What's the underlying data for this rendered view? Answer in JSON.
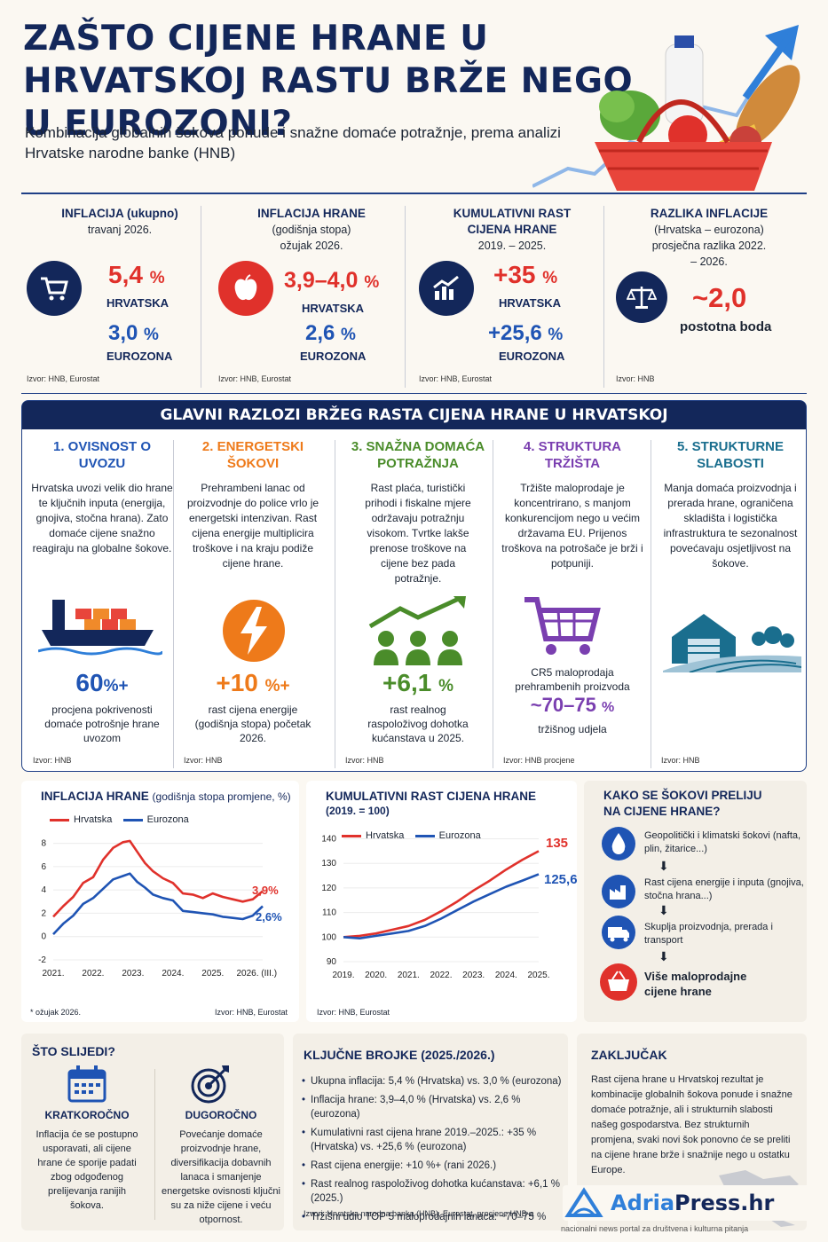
{
  "title": "ZAŠTO CIJENE HRANE U HRVATSKOJ RASTU BRŽE NEGO U EUROZONI?",
  "subtitle": "Kombinacija globalnih šokova ponude i snažne domaće potražnje, prema analizi Hrvatske narodne banke (HNB)",
  "kpis": [
    {
      "heading": "INFLACIJA (ukupno)",
      "sub": "travanj 2026.",
      "v1": "5,4",
      "u1": "%",
      "l1": "HRVATSKA",
      "v2": "3,0",
      "u2": "%",
      "l2": "EUROZONA",
      "src": "Izvor: HNB, Eurostat",
      "icon": "cart-icon"
    },
    {
      "heading": "INFLACIJA HRANE",
      "sub": "(godišnja stopa) ožujak 2026.",
      "v1": "3,9–4,0",
      "u1": "%",
      "l1": "HRVATSKA",
      "v2": "2,6",
      "u2": "%",
      "l2": "EUROZONA",
      "src": "Izvor: HNB, Eurostat",
      "icon": "apple-icon"
    },
    {
      "heading": "KUMULATIVNI RAST CIJENA HRANE",
      "sub": "2019. – 2025.",
      "v1": "+35",
      "u1": "%",
      "l1": "HRVATSKA",
      "v2": "+25,6",
      "u2": "%",
      "l2": "EUROZONA",
      "src": "Izvor: HNB, Eurostat",
      "icon": "growth-chart-icon"
    },
    {
      "heading": "RAZLIKA INFLACIJE",
      "sub": "(Hrvatska – eurozona) prosječna razlika 2022. – 2026.",
      "v1": "~2,0",
      "l1": "postotna boda",
      "src": "Izvor: HNB",
      "icon": "scales-icon"
    }
  ],
  "reasons_title": "GLAVNI RAZLOZI BRŽEG RASTA CIJENA HRANE U HRVATSKOJ",
  "reasons": [
    {
      "title": "1. OVISNOST O UVOZU",
      "color": "#1f54b4",
      "desc": "Hrvatska uvozi velik dio hrane te ključnih inputa (energija, gnojiva, stočna hrana). Zato domaće cijene snažno reagiraju na globalne šokove.",
      "value": "60",
      "unit": "%+",
      "label": "procjena pokrivenosti domaće potrošnje hrane uvozom",
      "src": "Izvor: HNB",
      "icon": "cargo-ship-icon"
    },
    {
      "title": "2. ENERGETSKI ŠOKOVI",
      "color": "#ee7a1a",
      "desc": "Prehrambeni lanac od proizvodnje do police vrlo je energetski intenzivan. Rast cijena energije multiplicira troškove i na kraju podiže cijene hrane.",
      "value": "+10",
      "unit": "%+",
      "label": "rast cijena energije (godišnja stopa) početak 2026.",
      "src": "Izvor: HNB",
      "icon": "lightning-icon"
    },
    {
      "title": "3. SNAŽNA DOMAĆA POTRAŽNJA",
      "color": "#4a8c2a",
      "desc": "Rast plaća, turistički prihodi i fiskalne mjere održavaju potražnju visokom. Tvrtke lakše prenose troškove na cijene bez pada potražnje.",
      "value": "+6,1",
      "unit": "%",
      "label": "rast realnog raspoloživog dohotka kućanstava u 2025.",
      "src": "Izvor: HNB",
      "icon": "people-growth-icon"
    },
    {
      "title": "4. STRUKTURA TRŽIŠTA",
      "color": "#7a3fb0",
      "desc": "Tržište maloprodaje je koncentrirano, s manjom konkurencijom nego u većim državama EU. Prijenos troškova na potrošače je brži i potpuniji.",
      "pre": "CR5 maloprodaja prehrambenih proizvoda",
      "value": "~70–75",
      "unit": "%",
      "label": "tržišnog udjela",
      "src": "Izvor: HNB procjene",
      "icon": "shopping-cart-icon"
    },
    {
      "title": "5. STRUKTURNE SLABOSTI",
      "color": "#1a6e8e",
      "desc": "Manja domaća proizvodnja i prerada hrane, ograničena skladišta i logistička infrastruktura te sezonalnost povećavaju osjetljivost na šokove.",
      "src": "Izvor: HNB",
      "icon": "warehouse-icon"
    }
  ],
  "chart1": {
    "title": "INFLACIJA HRANE",
    "title_sub": "(godišnja stopa promjene, %)",
    "legend": [
      "Hrvatska",
      "Eurozona"
    ],
    "end_labels": [
      "3,9%",
      "2,6%"
    ],
    "note": "* ožujak 2026.",
    "src": "Izvor: HNB, Eurostat"
  },
  "chart2": {
    "title": "KUMULATIVNI RAST CIJENA HRANE",
    "title_sub": "(2019. = 100)",
    "legend": [
      "Hrvatska",
      "Eurozona"
    ],
    "end_labels": [
      "135",
      "125,6"
    ],
    "src": "Izvor: HNB, Eurostat"
  },
  "chart_data": [
    {
      "type": "line",
      "title": "INFLACIJA HRANE (godišnja stopa promjene, %)",
      "x_ticks": [
        "2021.",
        "2022.",
        "2023.",
        "2024.",
        "2025.",
        "2026. (III.)"
      ],
      "y_ticks": [
        -2,
        0,
        2,
        4,
        6,
        8
      ],
      "ylim": [
        -2,
        8.5
      ],
      "x": [
        2021.0,
        2021.25,
        2021.5,
        2021.75,
        2022.0,
        2022.25,
        2022.5,
        2022.75,
        2022.92,
        2023.1,
        2023.3,
        2023.5,
        2023.75,
        2024.0,
        2024.25,
        2024.5,
        2024.75,
        2025.0,
        2025.25,
        2025.5,
        2025.75,
        2026.0,
        2026.25
      ],
      "series": [
        {
          "name": "Hrvatska",
          "color": "#e0312b",
          "values": [
            1.7,
            2.6,
            3.4,
            4.6,
            5.1,
            6.6,
            7.6,
            8.1,
            8.2,
            7.3,
            6.3,
            5.6,
            5.0,
            4.6,
            3.7,
            3.6,
            3.3,
            3.7,
            3.4,
            3.2,
            3.0,
            3.2,
            3.9
          ]
        },
        {
          "name": "Eurozona",
          "color": "#1f54b4",
          "values": [
            0.2,
            1.1,
            1.8,
            2.8,
            3.3,
            4.1,
            4.9,
            5.2,
            5.4,
            4.7,
            4.2,
            3.6,
            3.3,
            3.1,
            2.2,
            2.1,
            2.0,
            1.9,
            1.7,
            1.6,
            1.5,
            1.8,
            2.6
          ]
        }
      ]
    },
    {
      "type": "line",
      "title": "KUMULATIVNI RAST CIJENA HRANE (2019. = 100)",
      "x_ticks": [
        "2019.",
        "2020.",
        "2021.",
        "2022.",
        "2023.",
        "2024.",
        "2025."
      ],
      "y_ticks": [
        90,
        100,
        110,
        120,
        130,
        140
      ],
      "ylim": [
        90,
        142
      ],
      "x": [
        2019.0,
        2019.5,
        2020.0,
        2020.5,
        2021.0,
        2021.5,
        2022.0,
        2022.5,
        2023.0,
        2023.5,
        2024.0,
        2024.5,
        2025.0
      ],
      "series": [
        {
          "name": "Hrvatska",
          "color": "#e0312b",
          "values": [
            100,
            100.5,
            101.5,
            103,
            104.5,
            107,
            110.5,
            114.5,
            119,
            123,
            127.5,
            131.5,
            135
          ]
        },
        {
          "name": "Eurozona",
          "color": "#1f54b4",
          "values": [
            100,
            99.5,
            100.5,
            101.5,
            102.5,
            104.5,
            107.5,
            111,
            114.5,
            117.5,
            120.5,
            123,
            125.6
          ]
        }
      ]
    }
  ],
  "flow": {
    "title": "KAKO SE ŠOKOVI PRELIJU NA CIJENE HRANE?",
    "steps": [
      {
        "text": "Geopolitički i klimatski šokovi (nafta, plin, žitarice...)",
        "icon": "drop-icon"
      },
      {
        "text": "Rast cijena energije i inputa (gnojiva, stočna hrana...)",
        "icon": "factory-icon"
      },
      {
        "text": "Skuplja proizvodnja, prerada i transport",
        "icon": "truck-icon"
      },
      {
        "text": "Više maloprodajne cijene hrane",
        "icon": "basket-icon"
      }
    ]
  },
  "next": {
    "title": "ŠTO SLIJEDI?",
    "short_title": "KRATKOROČNO",
    "short_text": "Inflacija će se postupno usporavati, ali cijene hrane će sporije padati zbog odgođenog prelijevanja ranijih šokova.",
    "long_title": "DUGOROČNO",
    "long_text": "Povećanje domaće proizvodnje hrane, diversifikacija dobavnih lanaca i smanjenje energetske ovisnosti ključni su za niže cijene i veću otpornost."
  },
  "key": {
    "title": "KLJUČNE BROJKE (2025./2026.)",
    "items": [
      "Ukupna inflacija: 5,4 % (Hrvatska) vs. 3,0 % (eurozona)",
      "Inflacija hrane: 3,9–4,0 % (Hrvatska) vs. 2,6 % (eurozona)",
      "Kumulativni rast cijena hrane 2019.–2025.: +35 % (Hrvatska) vs. +25,6 % (eurozona)",
      "Rast cijena energije: +10 %+ (rani 2026.)",
      "Rast realnog raspoloživog dohotka kućanstava: +6,1 % (2025.)",
      "Tržišni udio TOP 5 maloprodajnih lanaca: ~70–75 %"
    ],
    "src": "Izvori: Hrvatska narodna banka (HNB), Eurostat, procjene HNB-a"
  },
  "conclusion": {
    "title": "ZAKLJUČAK",
    "text": "Rast cijena hrane u Hrvatskoj rezultat je kombinacije globalnih šokova ponude i snažne domaće potražnje, ali i strukturnih slabosti našeg gospodarstva. Bez strukturnih promjena, svaki novi šok ponovno će se preliti na cijene hrane brže i snažnije nego u ostatku Europe."
  },
  "brand": {
    "name_a": "Adria",
    "name_b": "Press.hr",
    "tagline": "nacionalni news portal za društvena i kulturna pitanja"
  }
}
